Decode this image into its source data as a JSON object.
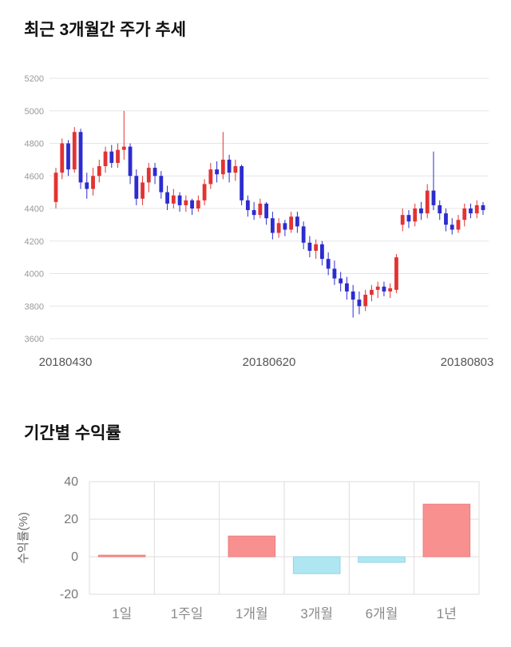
{
  "price_section": {
    "title": "최근 3개월간 주가 추세"
  },
  "returns_section": {
    "title": "기간별 수익률"
  },
  "chart_data": [
    {
      "type": "candlestick",
      "title": "최근 3개월간 주가 추세",
      "ylim": [
        3600,
        5200
      ],
      "yticks": [
        5200,
        5000,
        4800,
        4600,
        4400,
        4200,
        4000,
        3800,
        3600
      ],
      "xtick_labels": [
        "20180430",
        "20180620",
        "20180803"
      ],
      "up_color": "#e23333",
      "down_color": "#2c2cd0",
      "grid_color": "#e5e5e5",
      "candles_format": [
        "open",
        "high",
        "low",
        "close"
      ],
      "candles": [
        [
          4440,
          4650,
          4400,
          4620
        ],
        [
          4620,
          4830,
          4580,
          4800
        ],
        [
          4800,
          4820,
          4600,
          4640
        ],
        [
          4640,
          4900,
          4620,
          4870
        ],
        [
          4870,
          4890,
          4520,
          4560
        ],
        [
          4560,
          4620,
          4460,
          4520
        ],
        [
          4520,
          4650,
          4480,
          4600
        ],
        [
          4600,
          4700,
          4560,
          4660
        ],
        [
          4660,
          4780,
          4620,
          4750
        ],
        [
          4750,
          4790,
          4650,
          4680
        ],
        [
          4680,
          4800,
          4650,
          4760
        ],
        [
          4760,
          5000,
          4700,
          4780
        ],
        [
          4780,
          4800,
          4550,
          4600
        ],
        [
          4600,
          4640,
          4420,
          4460
        ],
        [
          4460,
          4600,
          4420,
          4560
        ],
        [
          4560,
          4680,
          4500,
          4650
        ],
        [
          4650,
          4680,
          4550,
          4600
        ],
        [
          4600,
          4630,
          4460,
          4500
        ],
        [
          4500,
          4540,
          4390,
          4430
        ],
        [
          4430,
          4520,
          4400,
          4480
        ],
        [
          4480,
          4500,
          4380,
          4420
        ],
        [
          4420,
          4480,
          4380,
          4450
        ],
        [
          4450,
          4460,
          4360,
          4400
        ],
        [
          4400,
          4480,
          4380,
          4450
        ],
        [
          4450,
          4580,
          4420,
          4550
        ],
        [
          4550,
          4680,
          4520,
          4640
        ],
        [
          4640,
          4690,
          4560,
          4610
        ],
        [
          4610,
          4870,
          4580,
          4700
        ],
        [
          4700,
          4730,
          4560,
          4620
        ],
        [
          4620,
          4700,
          4570,
          4660
        ],
        [
          4660,
          4670,
          4420,
          4450
        ],
        [
          4450,
          4480,
          4350,
          4390
        ],
        [
          4390,
          4440,
          4330,
          4360
        ],
        [
          4360,
          4460,
          4340,
          4430
        ],
        [
          4430,
          4440,
          4300,
          4340
        ],
        [
          4340,
          4380,
          4210,
          4250
        ],
        [
          4250,
          4340,
          4220,
          4310
        ],
        [
          4310,
          4330,
          4230,
          4270
        ],
        [
          4270,
          4380,
          4250,
          4350
        ],
        [
          4350,
          4380,
          4250,
          4290
        ],
        [
          4290,
          4320,
          4150,
          4190
        ],
        [
          4190,
          4230,
          4100,
          4140
        ],
        [
          4140,
          4210,
          4090,
          4180
        ],
        [
          4180,
          4200,
          4050,
          4090
        ],
        [
          4090,
          4130,
          3990,
          4030
        ],
        [
          4030,
          4080,
          3930,
          3970
        ],
        [
          3970,
          4010,
          3890,
          3940
        ],
        [
          3940,
          3980,
          3840,
          3890
        ],
        [
          3890,
          3930,
          3730,
          3840
        ],
        [
          3840,
          3890,
          3750,
          3800
        ],
        [
          3800,
          3900,
          3770,
          3870
        ],
        [
          3870,
          3930,
          3830,
          3900
        ],
        [
          3900,
          3950,
          3850,
          3920
        ],
        [
          3920,
          3950,
          3860,
          3890
        ],
        [
          3890,
          3940,
          3850,
          3910
        ],
        [
          3900,
          4120,
          3880,
          4100
        ],
        [
          4300,
          4400,
          4260,
          4360
        ],
        [
          4360,
          4390,
          4280,
          4320
        ],
        [
          4320,
          4430,
          4290,
          4400
        ],
        [
          4400,
          4440,
          4330,
          4370
        ],
        [
          4370,
          4550,
          4340,
          4510
        ],
        [
          4510,
          4750,
          4390,
          4420
        ],
        [
          4420,
          4450,
          4330,
          4370
        ],
        [
          4370,
          4400,
          4260,
          4300
        ],
        [
          4300,
          4340,
          4240,
          4270
        ],
        [
          4270,
          4360,
          4250,
          4330
        ],
        [
          4330,
          4430,
          4290,
          4400
        ],
        [
          4400,
          4430,
          4340,
          4370
        ],
        [
          4370,
          4450,
          4340,
          4420
        ],
        [
          4420,
          4440,
          4360,
          4390
        ]
      ]
    },
    {
      "type": "bar",
      "title": "기간별 수익률",
      "ylabel": "수익률(%)",
      "categories": [
        "1일",
        "1주일",
        "1개월",
        "3개월",
        "6개월",
        "1년"
      ],
      "values": [
        0.8,
        0,
        11,
        -9,
        -3,
        28
      ],
      "ylim": [
        -20,
        40
      ],
      "yticks": [
        40,
        20,
        0,
        -20
      ],
      "positive_color": "#f89090",
      "positive_border": "#ef7b7b",
      "negative_color": "#aee7f2",
      "negative_border": "#8fd6e8",
      "grid_color": "#dddddd",
      "legend": "none",
      "grid": "on"
    }
  ]
}
